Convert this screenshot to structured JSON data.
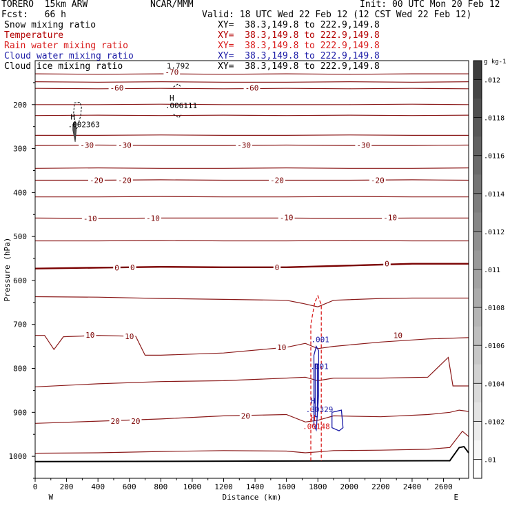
{
  "header": {
    "model": "TORERO  15km ARW",
    "institution": "NCAR/MMM",
    "init": "Init: 00 UTC Mon 20 Feb 12",
    "fcst": "Fcst:   66 h",
    "valid": "Valid: 18 UTC Wed 22 Feb 12 (12 CST Wed 22 Feb 12)"
  },
  "fields": [
    {
      "name": "Snow mixing ratio",
      "xy": "XY=  38.3,149.8 to 222.9,149.8",
      "color": "#000000"
    },
    {
      "name": "Temperature",
      "xy": "XY=  38.3,149.8 to 222.9,149.8",
      "color": "#b30000"
    },
    {
      "name": "Rain water mixing ratio",
      "xy": "XY=  38.3,149.8 to 222.9,149.8",
      "color": "#d81b1b"
    },
    {
      "name": "Cloud water mixing ratio",
      "xy": "XY=  38.3,149.8 to 222.9,149.8",
      "color": "#1a1aa6"
    },
    {
      "name": "Cloud ice mixing ratio",
      "xy": "XY=  38.3,149.8 to 222.9,149.8",
      "color": "#000000"
    }
  ],
  "chart_data": {
    "type": "line",
    "xlabel": "Distance (km)",
    "ylabel": "Pressure (hPa)",
    "xlim": [
      0,
      2760
    ],
    "ylim": [
      1050,
      100
    ],
    "y_scale": "linear, inverted",
    "x_ticks": [
      0,
      200,
      400,
      600,
      800,
      1000,
      1200,
      1400,
      1600,
      1800,
      2000,
      2200,
      2400,
      2600
    ],
    "y_ticks": [
      200,
      300,
      400,
      500,
      600,
      700,
      800,
      900,
      1000
    ],
    "x_end_labels": {
      "left": "W",
      "right": "E"
    },
    "colorbar": {
      "unit": "g kg-1",
      "tick_labels": [
        ".01",
        ".0102",
        ".0104",
        ".0106",
        ".0108",
        ".011",
        ".0112",
        ".0114",
        ".0116",
        ".0118",
        ".012"
      ],
      "bottom": 0.0099,
      "top": 0.0121
    },
    "temperature_series": [
      {
        "name": "-70",
        "color": "#8b1a1a",
        "width": 1.2,
        "x": [
          0,
          400,
          800,
          1200,
          1600,
          2000,
          2400,
          2760
        ],
        "y": [
          130,
          131,
          130,
          131,
          130,
          131,
          130,
          130
        ]
      },
      {
        "name": "",
        "color": "#8b1a1a",
        "width": 1.2,
        "x": [
          0,
          400,
          800,
          1200,
          1600,
          2000,
          2400,
          2760
        ],
        "y": [
          148,
          149,
          148,
          149,
          149,
          148,
          149,
          148
        ]
      },
      {
        "name": "-60",
        "color": "#8b1a1a",
        "width": 1.2,
        "x": [
          0,
          400,
          800,
          1200,
          1600,
          2000,
          2400,
          2760
        ],
        "y": [
          163,
          164,
          163,
          164,
          163,
          164,
          163,
          164
        ]
      },
      {
        "name": "",
        "color": "#8b1a1a",
        "width": 1.2,
        "x": [
          0,
          400,
          800,
          1200,
          1600,
          2000,
          2400,
          2760
        ],
        "y": [
          200,
          200,
          199,
          200,
          200,
          200,
          199,
          200
        ]
      },
      {
        "name": "",
        "color": "#8b1a1a",
        "width": 1.2,
        "x": [
          0,
          400,
          800,
          1200,
          1600,
          2000,
          2400,
          2760
        ],
        "y": [
          225,
          224,
          225,
          224,
          225,
          224,
          225,
          224
        ]
      },
      {
        "name": "",
        "color": "#8b1a1a",
        "width": 1.2,
        "x": [
          0,
          400,
          800,
          1200,
          1600,
          2000,
          2400,
          2760
        ],
        "y": [
          270,
          270,
          269,
          270,
          270,
          269,
          270,
          270
        ]
      },
      {
        "name": "-30",
        "color": "#8b1a1a",
        "width": 1.2,
        "x": [
          0,
          400,
          800,
          1200,
          1600,
          2000,
          2400,
          2760
        ],
        "y": [
          293,
          292,
          293,
          293,
          292,
          293,
          293,
          292
        ]
      },
      {
        "name": "",
        "color": "#8b1a1a",
        "width": 1.2,
        "x": [
          0,
          400,
          800,
          1200,
          1600,
          2000,
          2400,
          2760
        ],
        "y": [
          345,
          344,
          345,
          345,
          344,
          345,
          345,
          344
        ]
      },
      {
        "name": "-20",
        "color": "#8b1a1a",
        "width": 1.2,
        "x": [
          0,
          400,
          800,
          1200,
          1600,
          2000,
          2400,
          2760
        ],
        "y": [
          372,
          372,
          371,
          372,
          372,
          372,
          371,
          372
        ]
      },
      {
        "name": "",
        "color": "#8b1a1a",
        "width": 1.2,
        "x": [
          0,
          400,
          800,
          1200,
          1600,
          2000,
          2400,
          2760
        ],
        "y": [
          410,
          410,
          409,
          410,
          410,
          409,
          410,
          410
        ]
      },
      {
        "name": "-10",
        "color": "#8b1a1a",
        "width": 1.2,
        "x": [
          0,
          400,
          800,
          1200,
          1600,
          2000,
          2400,
          2760
        ],
        "y": [
          458,
          459,
          458,
          458,
          458,
          459,
          458,
          458
        ]
      },
      {
        "name": "",
        "color": "#8b1a1a",
        "width": 1.2,
        "x": [
          0,
          400,
          800,
          1200,
          1600,
          2000,
          2400,
          2760
        ],
        "y": [
          510,
          510,
          509,
          510,
          510,
          509,
          510,
          510
        ]
      },
      {
        "name": "0",
        "color": "#7a0000",
        "width": 2.4,
        "x": [
          0,
          400,
          800,
          1200,
          1600,
          2000,
          2400,
          2760
        ],
        "y": [
          573,
          571,
          569,
          570,
          570,
          566,
          562,
          562
        ]
      },
      {
        "name": "",
        "color": "#8b1a1a",
        "width": 1.2,
        "x": [
          0,
          400,
          800,
          1200,
          1600,
          1700,
          1800,
          1900,
          2200,
          2400,
          2760
        ],
        "y": [
          637,
          638,
          641,
          643,
          645,
          652,
          660,
          645,
          641,
          640,
          640
        ]
      },
      {
        "name": "10",
        "color": "#8b1a1a",
        "width": 1.2,
        "x": [
          0,
          60,
          120,
          180,
          400,
          640,
          700,
          800,
          1200,
          1600,
          1720,
          1800,
          1900,
          2200,
          2500,
          2760
        ],
        "y": [
          725,
          725,
          757,
          728,
          725,
          727,
          770,
          770,
          765,
          752,
          743,
          755,
          750,
          740,
          733,
          730
        ]
      },
      {
        "name": "",
        "color": "#8b1a1a",
        "width": 1.2,
        "x": [
          0,
          400,
          800,
          1200,
          1600,
          1720,
          1800,
          1900,
          2200,
          2500,
          2630,
          2660,
          2760
        ],
        "y": [
          842,
          835,
          830,
          828,
          822,
          820,
          828,
          822,
          822,
          820,
          775,
          840,
          840
        ]
      },
      {
        "name": "20",
        "color": "#8b1a1a",
        "width": 1.2,
        "x": [
          0,
          400,
          800,
          1200,
          1600,
          1720,
          1800,
          1900,
          2200,
          2500,
          2640,
          2700,
          2760
        ],
        "y": [
          925,
          920,
          915,
          908,
          905,
          922,
          918,
          908,
          910,
          905,
          900,
          895,
          898
        ]
      },
      {
        "name": "",
        "color": "#8b1a1a",
        "width": 1.2,
        "x": [
          0,
          400,
          800,
          1200,
          1600,
          1720,
          1800,
          1900,
          2200,
          2500,
          2640,
          2720,
          2760
        ],
        "y": [
          993,
          992,
          989,
          987,
          988,
          992,
          990,
          987,
          986,
          984,
          980,
          943,
          955
        ]
      }
    ],
    "temperature_labels": [
      {
        "text": "-70",
        "x": 870,
        "y": 126
      },
      {
        "text": "-60",
        "x": 520,
        "y": 162
      },
      {
        "text": "-60",
        "x": 1380,
        "y": 162
      },
      {
        "text": "-30",
        "x": 330,
        "y": 292
      },
      {
        "text": "-30",
        "x": 570,
        "y": 292
      },
      {
        "text": "-30",
        "x": 1330,
        "y": 292
      },
      {
        "text": "-30",
        "x": 2090,
        "y": 292
      },
      {
        "text": "-20",
        "x": 390,
        "y": 372
      },
      {
        "text": "-20",
        "x": 570,
        "y": 372
      },
      {
        "text": "-20",
        "x": 1540,
        "y": 372
      },
      {
        "text": "-20",
        "x": 2180,
        "y": 372
      },
      {
        "text": "-10",
        "x": 350,
        "y": 459
      },
      {
        "text": "-10",
        "x": 750,
        "y": 458
      },
      {
        "text": "-10",
        "x": 1600,
        "y": 457
      },
      {
        "text": "-10",
        "x": 2260,
        "y": 457
      },
      {
        "text": "0",
        "x": 520,
        "y": 571
      },
      {
        "text": "0",
        "x": 620,
        "y": 570
      },
      {
        "text": "0",
        "x": 1540,
        "y": 570
      },
      {
        "text": "0",
        "x": 2240,
        "y": 562
      },
      {
        "text": "10",
        "x": 350,
        "y": 724
      },
      {
        "text": "10",
        "x": 600,
        "y": 727
      },
      {
        "text": "10",
        "x": 1570,
        "y": 752
      },
      {
        "text": "10",
        "x": 2310,
        "y": 725
      },
      {
        "text": "20",
        "x": 1340,
        "y": 908
      },
      {
        "text": "20",
        "x": 510,
        "y": 920
      },
      {
        "text": "20",
        "x": 640,
        "y": 920
      }
    ],
    "rain_water_contours": [
      {
        "color": "#d81b1b",
        "x": [
          1755,
          1755,
          1780,
          1800,
          1822,
          1822
        ],
        "y": [
          1010,
          700,
          650,
          635,
          655,
          1010
        ]
      }
    ],
    "cloud_water_contours": [
      {
        "color": "#1a1aa6",
        "x": [
          1775,
          1775,
          1790,
          1805,
          1805,
          1790,
          1775
        ],
        "y": [
          930,
          770,
          750,
          760,
          860,
          940,
          930
        ]
      },
      {
        "color": "#1a1aa6",
        "x": [
          1783,
          1783,
          1797,
          1797,
          1783
        ],
        "y": [
          910,
          790,
          790,
          910,
          910
        ]
      },
      {
        "color": "#1a1aa6",
        "x": [
          1890,
          1950,
          1960,
          1935,
          1890,
          1890
        ],
        "y": [
          900,
          895,
          935,
          942,
          935,
          900
        ]
      }
    ],
    "snow_contours": [
      {
        "color": "#000000",
        "dashed": true,
        "x": [
          245,
          250,
          285,
          295,
          290,
          270,
          260,
          245
        ],
        "y": [
          220,
          196,
          195,
          205,
          225,
          250,
          258,
          220
        ]
      },
      {
        "color": "#000000",
        "dashed": true,
        "x": [
          880,
          910,
          930
        ],
        "y": [
          160,
          153,
          160
        ]
      },
      {
        "color": "#000000",
        "dashed": true,
        "x": [
          880,
          915,
          930
        ],
        "y": [
          222,
          230,
          222
        ]
      }
    ],
    "ice_blob": {
      "color": "#555555",
      "x": [
        240,
        255,
        262,
        255,
        240
      ],
      "y": [
        245,
        238,
        258,
        285,
        258
      ]
    },
    "annotations": [
      {
        "text": "H",
        "x": 240,
        "y": 228,
        "color": "#000000"
      },
      {
        "text": ".002363",
        "x": 310,
        "y": 245,
        "color": "#000000"
      },
      {
        "text": "H",
        "x": 870,
        "y": 185,
        "color": "#000000"
      },
      {
        "text": ".006111",
        "x": 930,
        "y": 202,
        "color": "#000000"
      },
      {
        "text": "1.792",
        "x": 910,
        "y": 112,
        "color": "#000000"
      },
      {
        "text": ".001",
        "x": 1815,
        "y": 734,
        "color": "#1a1aa6"
      },
      {
        "text": ".001",
        "x": 1810,
        "y": 795,
        "color": "#1a1aa6"
      },
      {
        "text": "H",
        "x": 1770,
        "y": 874,
        "color": "#1a1aa6"
      },
      {
        "text": ".30329",
        "x": 1810,
        "y": 893,
        "color": "#1a1aa6"
      },
      {
        "text": "H",
        "x": 1770,
        "y": 912,
        "color": "#d81b1b"
      },
      {
        "text": ".00148",
        "x": 1790,
        "y": 932,
        "color": "#d81b1b"
      }
    ],
    "terrain": {
      "color": "#000000",
      "x": [
        0,
        2640,
        2700,
        2730,
        2760
      ],
      "y": [
        1012,
        1010,
        980,
        978,
        992
      ],
      "bottom": 1050
    }
  }
}
